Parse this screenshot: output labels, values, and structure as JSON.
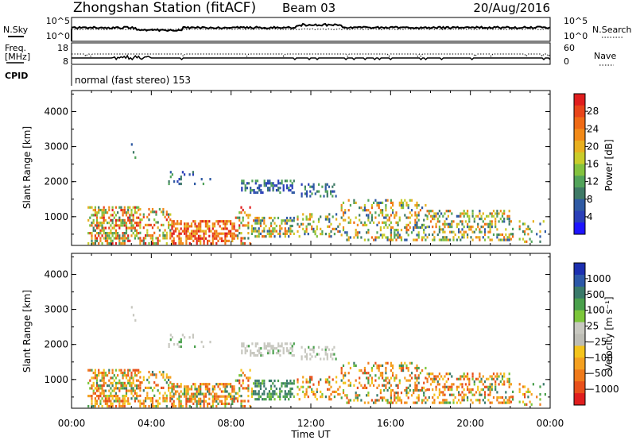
{
  "header": {
    "station": "Zhongshan Station (fitACF)",
    "beam": "Beam 03",
    "date": "20/Aug/2016"
  },
  "top_panels": {
    "nsky_label": "N.Sky",
    "nsky_ticks": [
      "10^5",
      "10^0"
    ],
    "nsearch_label": "N.Search",
    "nsearch_ticks": [
      "10^5",
      "10^0"
    ],
    "freq_label": "Freq.",
    "freq_unit": "[MHz]",
    "freq_ticks": [
      "18",
      "8"
    ],
    "nave_label": "Nave",
    "nave_ticks": [
      "60",
      "0"
    ],
    "cpid_label": "CPID",
    "cpid_value": "normal (fast stereo) 153"
  },
  "chart_data": [
    {
      "type": "heatmap",
      "name": "power-panel",
      "ylabel": "Slant Range [km]",
      "xlabel": "",
      "y_ticks": [
        "1000",
        "2000",
        "3000",
        "4000"
      ],
      "ylim": [
        180,
        4600
      ],
      "xlim_hours": [
        0,
        24
      ],
      "colorbar": {
        "label": "Power [dB]",
        "ticks": [
          "4",
          "8",
          "12",
          "16",
          "20",
          "24",
          "28"
        ],
        "range": [
          0,
          32
        ],
        "colors": [
          "#1e14ff",
          "#2a3fb8",
          "#2f5aa3",
          "#3f7a66",
          "#52a35a",
          "#83c23e",
          "#c9cc2a",
          "#e8b020",
          "#f28a18",
          "#ef6a15",
          "#e8451a",
          "#e01e1e"
        ]
      }
    },
    {
      "type": "heatmap",
      "name": "velocity-panel",
      "ylabel": "Slant Range [km]",
      "xlabel": "Time UT",
      "y_ticks": [
        "1000",
        "2000",
        "3000",
        "4000"
      ],
      "ylim": [
        180,
        4600
      ],
      "x_ticks": [
        "00:00",
        "04:00",
        "08:00",
        "12:00",
        "16:00",
        "20:00",
        "00:00"
      ],
      "xlim_hours": [
        0,
        24
      ],
      "colorbar": {
        "label": "Velocity [m s⁻¹]",
        "ticks": [
          "1000",
          "500",
          "100",
          "25",
          "−25",
          "−100",
          "−500",
          "−1000"
        ],
        "colors": [
          "#1c2fb0",
          "#2c58a8",
          "#3a7a6a",
          "#4aa04c",
          "#7cc63a",
          "#c8c8c0",
          "#bdbdb5",
          "#f4c41c",
          "#f4a020",
          "#ef7a1a",
          "#e8501a",
          "#e01e1e"
        ]
      }
    }
  ]
}
